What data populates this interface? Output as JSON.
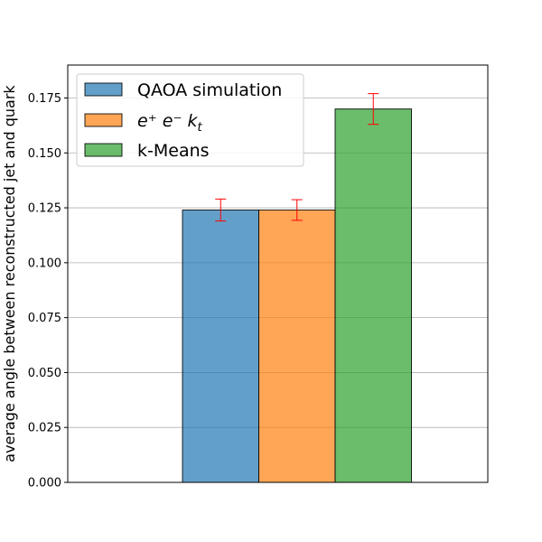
{
  "chart_data": {
    "type": "bar",
    "title": "",
    "xlabel": "",
    "ylabel": "average angle between reconstructed jet and quark",
    "ylim": [
      0,
      0.19
    ],
    "yticks": [
      "0.000",
      "0.025",
      "0.050",
      "0.075",
      "0.100",
      "0.125",
      "0.150",
      "0.175"
    ],
    "grid": "horizontal",
    "legend_position": "top-left",
    "series": [
      {
        "name": "QAOA simulation",
        "value": 0.124,
        "error": 0.005,
        "color": "#1f77b4"
      },
      {
        "name": "e⁺ e⁻ k",
        "name_subscript": "t",
        "value": 0.124,
        "error": 0.0047,
        "color": "#ff7f0e"
      },
      {
        "name": "k-Means",
        "value": 0.17,
        "error": 0.007,
        "color": "#2ca02c"
      }
    ],
    "error_bar_color": "#ff0000"
  }
}
